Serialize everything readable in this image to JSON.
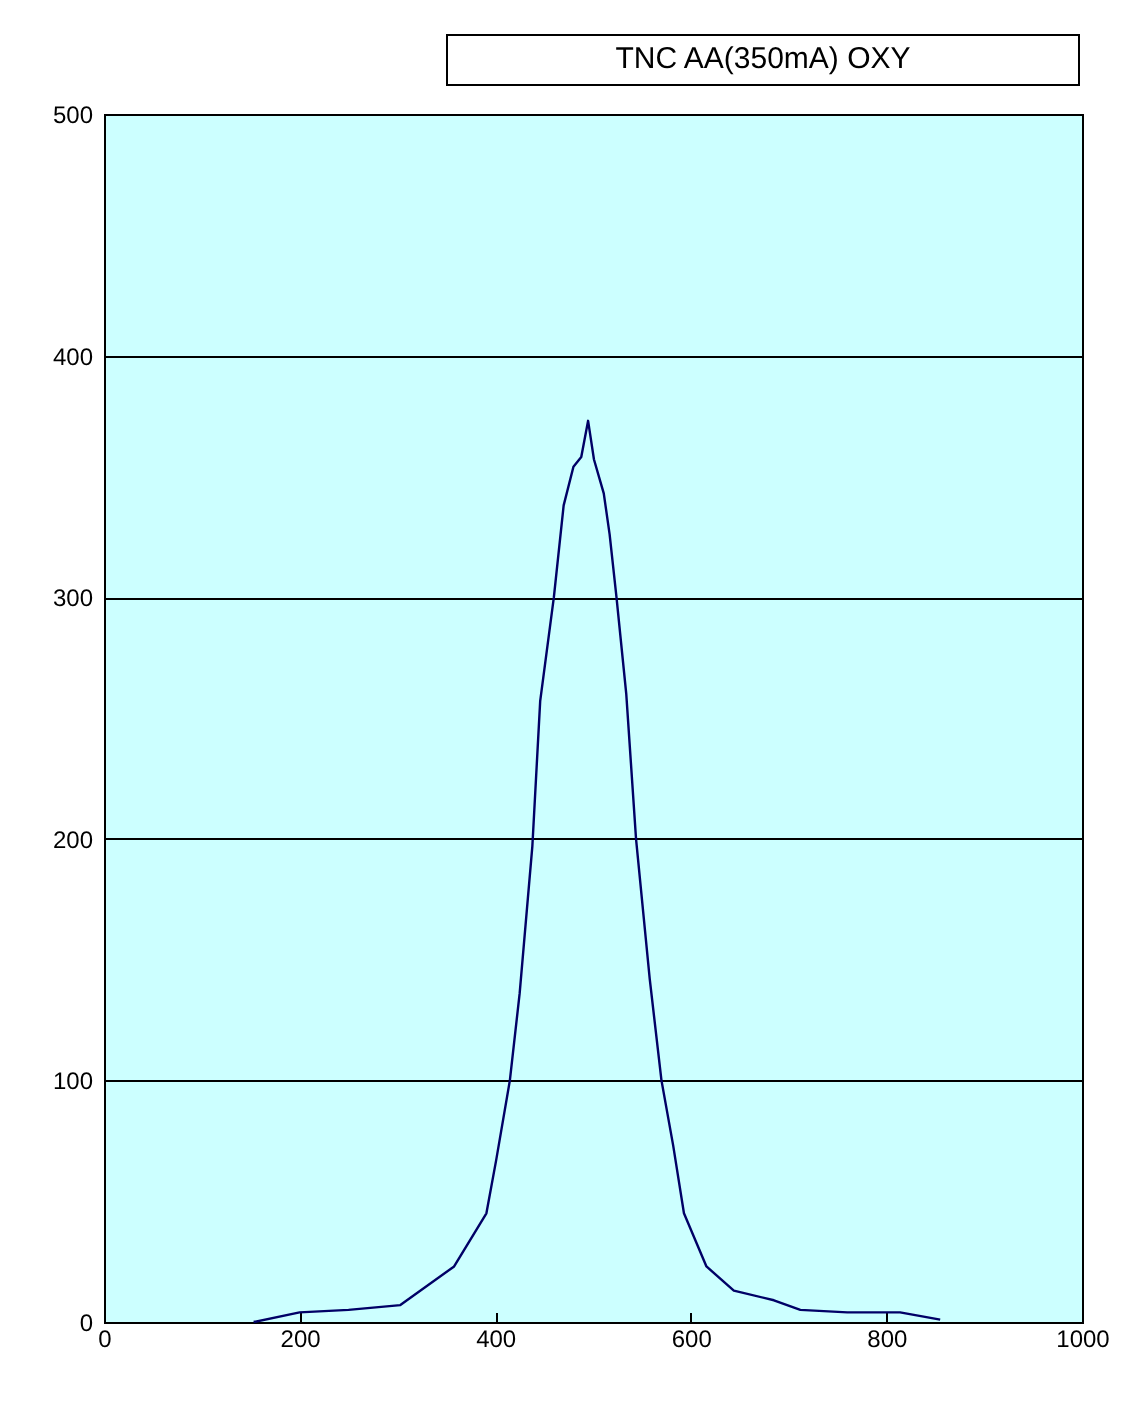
{
  "chart_data": {
    "type": "line",
    "title": "TNC AA(350mA) OXY",
    "x": [
      153,
      200,
      250,
      303,
      358,
      391,
      401,
      415,
      425,
      438,
      446,
      460,
      470,
      480,
      488,
      495,
      501,
      511,
      517,
      524,
      534,
      544,
      558,
      570,
      582,
      593,
      616,
      644,
      685,
      712,
      760,
      814,
      855
    ],
    "series": [
      {
        "color": "#000066",
        "values": [
          0,
          4,
          5,
          7,
          23,
          45,
          67,
          100,
          136,
          197,
          257,
          300,
          338,
          354,
          358,
          373,
          357,
          343,
          326,
          300,
          260,
          200,
          142,
          100,
          73,
          45,
          23,
          13,
          9,
          5,
          4,
          4,
          1
        ]
      }
    ],
    "xlim": [
      0,
      1000
    ],
    "xticks": [
      0,
      200,
      400,
      600,
      800,
      1000
    ],
    "ylim": [
      0,
      500
    ],
    "yticks": [
      0,
      100,
      200,
      300,
      400,
      500
    ],
    "grid": "y",
    "marker": "none",
    "line_style": "solid"
  }
}
